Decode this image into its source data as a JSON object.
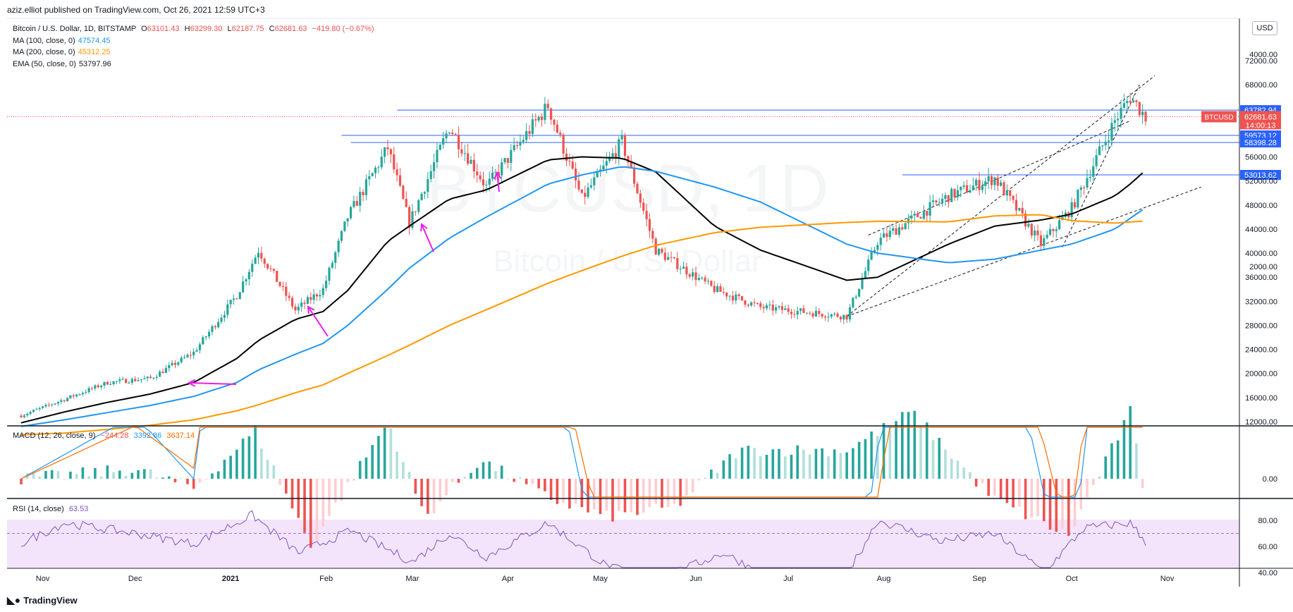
{
  "header": {
    "text": "aziz.elliot published on TradingView.com, Oct 26, 2021 12:59 UTC+3"
  },
  "main_legend": {
    "symbol": "Bitcoin / U.S. Dollar, 1D, BITSTAMP",
    "o_label": "O",
    "o": "63101.43",
    "h_label": "H",
    "h": "63299.30",
    "l_label": "L",
    "l": "62187.75",
    "c_label": "C",
    "c": "62681.63",
    "change": "−419.80 (−0.67%)"
  },
  "indicators": [
    {
      "label": "MA (100, close, 0)",
      "value": "47574.45",
      "color": "#2196f3"
    },
    {
      "label": "MA (200, close, 0)",
      "value": "45312.25",
      "color": "#ff9800"
    },
    {
      "label": "EMA (50, close, 0)",
      "value": "53797.96",
      "color": "#000000"
    }
  ],
  "watermark": {
    "symbol": "BTCUSD, 1D",
    "name": "Bitcoin / U.S. Dollar"
  },
  "price_scale": {
    "currency": "USD",
    "ticks": [
      "12000.00",
      "16000.00",
      "20000.00",
      "24000.00",
      "28000.00",
      "32000.00",
      "36000.00",
      "40000.00",
      "44000.00",
      "48000.00",
      "52000.00",
      "56000.00",
      "68000.00",
      "72000.00"
    ]
  },
  "level_labels": [
    {
      "price": 63782.94,
      "text": "63782.94",
      "color": "#2962ff"
    },
    {
      "price": 59573.12,
      "text": "59573.12",
      "color": "#2962ff"
    },
    {
      "price": 58398.28,
      "text": "58398.28",
      "color": "#2962ff"
    },
    {
      "price": 53013.62,
      "text": "53013.62",
      "color": "#2962ff"
    }
  ],
  "last_price": {
    "symbol": "BTCUSD",
    "price": "62681.63",
    "countdown": "14:00:13",
    "color": "#ef5350"
  },
  "time_axis": [
    "Nov",
    "Dec",
    "2021",
    "Feb",
    "Mar",
    "Apr",
    "May",
    "Jun",
    "Jul",
    "Aug",
    "Sep",
    "Oct",
    "Nov"
  ],
  "macd_legend": {
    "label": "MACD (12, 26, close, 9)",
    "hist": "−244.28",
    "macd": "3392.86",
    "signal": "3637.14"
  },
  "macd_scale": [
    "4000.00",
    "2000.00",
    "0.00"
  ],
  "rsi_legend": {
    "label": "RSI (14, close)",
    "value": "63.53"
  },
  "rsi_scale": [
    "80.00",
    "60.00",
    "40.00"
  ],
  "footer": {
    "brand": "TradingView"
  },
  "chart_data": [
    {
      "type": "line",
      "title": "Bitcoin / U.S. Dollar, 1D, BITSTAMP",
      "x": [
        "2020-10-25",
        "2020-11-08",
        "2020-11-22",
        "2020-12-06",
        "2020-12-20",
        "2021-01-03",
        "2021-01-10",
        "2021-01-22",
        "2021-01-31",
        "2021-02-08",
        "2021-02-21",
        "2021-02-28",
        "2021-03-13",
        "2021-03-25",
        "2021-04-14",
        "2021-04-25",
        "2021-05-08",
        "2021-05-19",
        "2021-06-07",
        "2021-06-22",
        "2021-07-20",
        "2021-07-30",
        "2021-08-22",
        "2021-09-06",
        "2021-09-21",
        "2021-10-01",
        "2021-10-15",
        "2021-10-20",
        "2021-10-25"
      ],
      "series": [
        {
          "name": "BTCUSD",
          "values": [
            13000,
            15700,
            18500,
            19200,
            23500,
            33000,
            40500,
            30500,
            34000,
            46000,
            57500,
            45000,
            61000,
            51000,
            64500,
            49000,
            58500,
            40500,
            34000,
            31000,
            29500,
            42000,
            49500,
            52500,
            41500,
            47500,
            62000,
            66000,
            62681
          ]
        },
        {
          "name": "EMA (50, close, 0)",
          "values": [
            11800,
            13600,
            15200,
            16600,
            18500,
            22500,
            25500,
            29000,
            30300,
            33800,
            42000,
            44500,
            49000,
            50500,
            55500,
            56000,
            55800,
            53500,
            44500,
            40500,
            35500,
            36000,
            41500,
            44500,
            45500,
            46500,
            49500,
            51500,
            53797
          ]
        },
        {
          "name": "MA (100, close, 0)",
          "values": [
            11200,
            12300,
            13500,
            14700,
            16200,
            18500,
            20600,
            23200,
            25000,
            28000,
            34000,
            37500,
            42500,
            46000,
            51500,
            53000,
            54400,
            53600,
            51000,
            48500,
            41500,
            40000,
            38400,
            39000,
            40500,
            41500,
            44000,
            45800,
            47574
          ]
        },
        {
          "name": "MA (200, close, 0)",
          "values": [
            9800,
            10100,
            10700,
            11400,
            12300,
            13800,
            14800,
            16800,
            18100,
            20000,
            23000,
            24700,
            28000,
            30600,
            35000,
            37100,
            39500,
            41300,
            43400,
            44300,
            45100,
            45300,
            45200,
            46200,
            46400,
            45400,
            45000,
            45200,
            45312
          ]
        }
      ],
      "horizontal_levels": [
        63782.94,
        59573.12,
        58398.28,
        53013.62
      ],
      "last_price": 62681.63,
      "ylim": [
        11200,
        74000
      ]
    },
    {
      "type": "line",
      "title": "MACD (12, 26, close, 9)",
      "x": [
        "2020-10-25",
        "2020-12-01",
        "2020-12-20",
        "2021-01-09",
        "2021-01-27",
        "2021-02-21",
        "2021-03-05",
        "2021-03-23",
        "2021-04-14",
        "2021-05-03",
        "2021-05-25",
        "2021-06-15",
        "2021-07-20",
        "2021-08-10",
        "2021-09-05",
        "2021-09-30",
        "2021-10-20",
        "2021-10-25"
      ],
      "series": [
        {
          "name": "MACD",
          "values": [
            0,
            600,
            0,
            4500,
            500,
            4800,
            800,
            2500,
            1400,
            -1200,
            -2500,
            -2000,
            -1800,
            2600,
            2100,
            -1200,
            4600,
            3393
          ]
        },
        {
          "name": "Signal",
          "values": [
            0,
            500,
            100,
            4000,
            1200,
            4200,
            1200,
            2300,
            1600,
            -800,
            -2200,
            -2300,
            -2100,
            1900,
            2300,
            -600,
            3900,
            3637
          ]
        }
      ],
      "histogram_last": -244.28,
      "ylim": [
        -2800,
        4800
      ]
    },
    {
      "type": "line",
      "title": "RSI (14, close)",
      "x": [
        "2020-10-25",
        "2020-11-08",
        "2020-12-01",
        "2020-12-20",
        "2021-01-08",
        "2021-01-23",
        "2021-02-09",
        "2021-03-01",
        "2021-03-13",
        "2021-03-25",
        "2021-04-14",
        "2021-05-03",
        "2021-05-19",
        "2021-06-10",
        "2021-06-22",
        "2021-07-20",
        "2021-07-30",
        "2021-08-20",
        "2021-09-06",
        "2021-09-22",
        "2021-10-05",
        "2021-10-20",
        "2021-10-25"
      ],
      "series": [
        {
          "name": "RSI",
          "values": [
            62,
            78,
            70,
            62,
            84,
            55,
            72,
            48,
            70,
            52,
            78,
            45,
            34,
            55,
            40,
            38,
            80,
            64,
            70,
            40,
            74,
            78,
            63.53
          ]
        }
      ],
      "bands": [
        30,
        70
      ],
      "ylim": [
        36,
        86
      ]
    }
  ]
}
